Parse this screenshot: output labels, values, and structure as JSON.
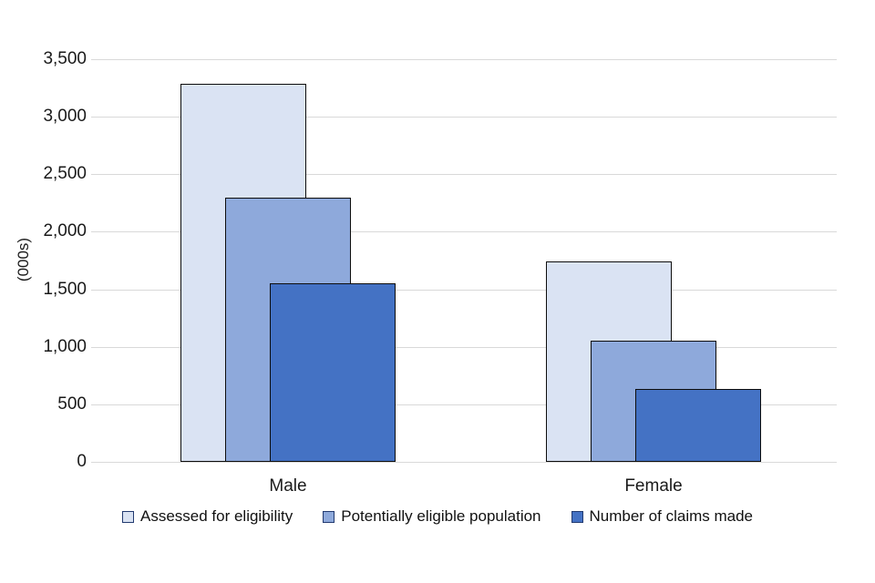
{
  "chart_data": {
    "type": "bar",
    "variant": "overlapping-bars",
    "categories": [
      "Male",
      "Female"
    ],
    "series": [
      {
        "name": "Assessed for eligibility",
        "color": "#dae3f3",
        "values": [
          3290,
          1740
        ]
      },
      {
        "name": "Potentially eligible population",
        "color": "#8ea9db",
        "values": [
          2300,
          1050
        ]
      },
      {
        "name": "Number of claims made",
        "color": "#4472c4",
        "values": [
          1550,
          630
        ]
      }
    ],
    "title": "",
    "xlabel": "",
    "ylabel": "(000s)",
    "ylim": [
      0,
      3500
    ],
    "ytick_step": 500,
    "ytick_labels": [
      "0",
      "500",
      "1,000",
      "1,500",
      "2,000",
      "2,500",
      "3,000",
      "3,500"
    ],
    "grid": "horizontal",
    "legend_position": "bottom",
    "gridline_color": "#d9d9d9",
    "bar_border_color": "#0d0d0d",
    "legend_marker_border_color": "#223a70"
  }
}
